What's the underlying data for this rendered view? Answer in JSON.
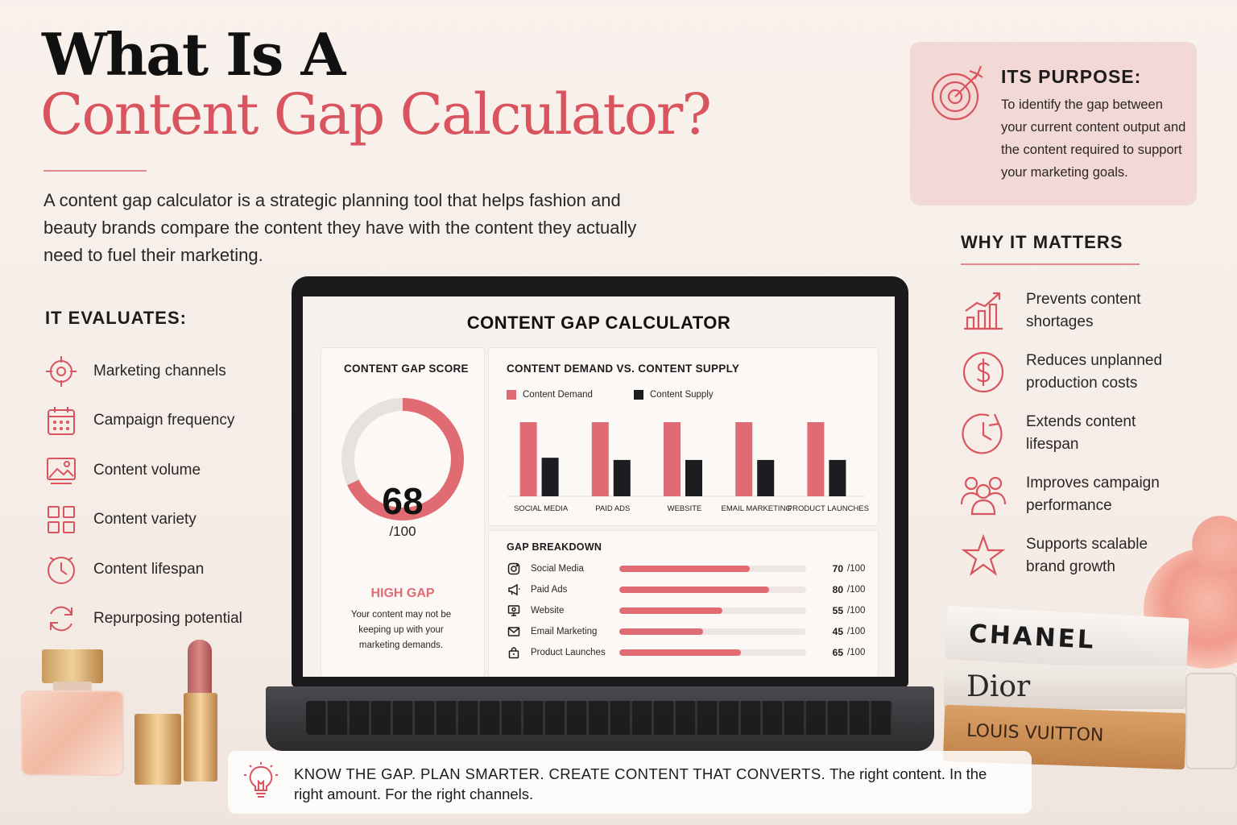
{
  "title": {
    "line1": "What Is A",
    "line2": "Content Gap Calculator?"
  },
  "intro": "A content gap calculator is a strategic planning tool that helps fashion and beauty brands compare the content they have with the content they actually need to fuel their marketing.",
  "evaluates": {
    "heading": "IT EVALUATES:",
    "items": [
      {
        "label": "Marketing channels",
        "icon": "target-icon"
      },
      {
        "label": "Campaign frequency",
        "icon": "calendar-icon"
      },
      {
        "label": "Content volume",
        "icon": "image-icon"
      },
      {
        "label": "Content variety",
        "icon": "grid-icon"
      },
      {
        "label": "Content lifespan",
        "icon": "clock-icon"
      },
      {
        "label": "Repurposing potential",
        "icon": "refresh-icon"
      }
    ]
  },
  "purpose": {
    "heading": "ITS PURPOSE:",
    "text": "To identify the gap between your current content output and the content required to support your marketing goals."
  },
  "why": {
    "heading": "WHY IT MATTERS",
    "items": [
      {
        "label": "Prevents content shortages",
        "icon": "growth-chart-icon"
      },
      {
        "label": "Reduces unplanned production costs",
        "icon": "dollar-icon"
      },
      {
        "label": "Extends content lifespan",
        "icon": "clock-icon"
      },
      {
        "label": "Improves campaign performance",
        "icon": "people-icon"
      },
      {
        "label": "Supports scalable brand growth",
        "icon": "star-icon"
      }
    ]
  },
  "calculator": {
    "title": "CONTENT GAP CALCULATOR",
    "score": {
      "label": "CONTENT GAP SCORE",
      "value": 68,
      "value_text": "68",
      "denominator": "/100",
      "level": "HIGH GAP",
      "message": "Your content may not be keeping up with your marketing demands."
    },
    "demand_panel_label": "CONTENT DEMAND VS. CONTENT SUPPLY",
    "gap_panel_label": "GAP BREAKDOWN",
    "gap_unit": "/100"
  },
  "chart_data": {
    "type": "bar",
    "title": "CONTENT DEMAND VS. CONTENT SUPPLY",
    "categories": [
      "SOCIAL MEDIA",
      "PAID ADS",
      "WEBSITE",
      "EMAIL MARKETING",
      "PRODUCT LAUNCHES"
    ],
    "series": [
      {
        "name": "Content Demand",
        "color": "#e06b73",
        "values": [
          100,
          100,
          100,
          100,
          100
        ]
      },
      {
        "name": "Content Supply",
        "color": "#1b1d20",
        "values": [
          52,
          49,
          49,
          49,
          49
        ]
      }
    ],
    "ylim": [
      0,
      100
    ],
    "grid": false,
    "legend": "top-left"
  },
  "gap_breakdown": [
    {
      "name": "Social Media",
      "value": 70,
      "value_text": "70",
      "icon": "instagram-icon"
    },
    {
      "name": "Paid Ads",
      "value": 80,
      "value_text": "80",
      "icon": "megaphone-icon"
    },
    {
      "name": "Website",
      "value": 55,
      "value_text": "55",
      "icon": "monitor-icon"
    },
    {
      "name": "Email Marketing",
      "value": 45,
      "value_text": "45",
      "icon": "mail-icon"
    },
    {
      "name": "Product Launches",
      "value": 65,
      "value_text": "65",
      "icon": "bag-icon"
    }
  ],
  "banner": {
    "bold": "KNOW THE GAP. PLAN SMARTER. CREATE CONTENT THAT CONVERTS.",
    "rest": " The right content. In the right amount. For the right channels."
  },
  "books": [
    "CHANEL",
    "Dior",
    "LOUIS VUITTON"
  ],
  "colors": {
    "accent": "#e06b73",
    "dark": "#1b1d20",
    "title_accent": "#d9545e",
    "card": "#f3d9d5"
  }
}
